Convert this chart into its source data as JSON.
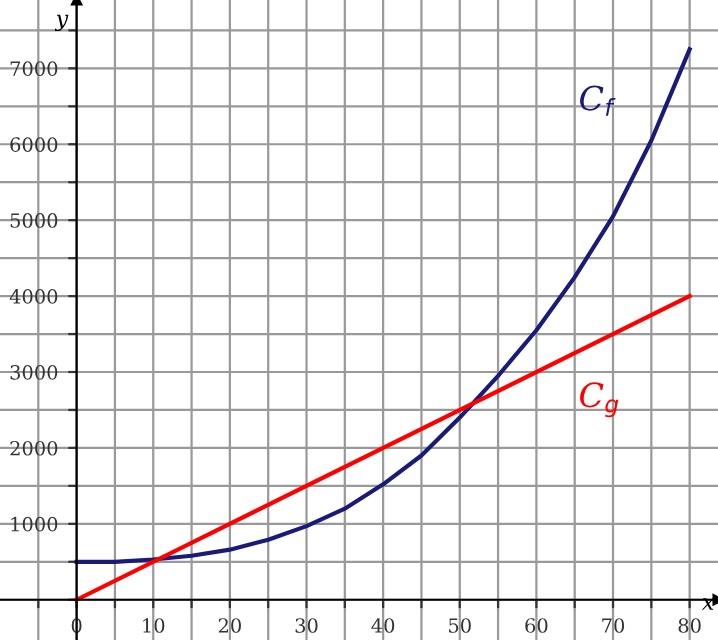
{
  "chart_data": {
    "type": "line",
    "xlabel": "x",
    "ylabel": "y",
    "x": [
      0,
      5,
      10,
      15,
      20,
      25,
      30,
      35,
      40,
      45,
      50,
      55,
      60,
      65,
      70,
      75,
      80
    ],
    "series": [
      {
        "name": "C$_{f}$",
        "color": "#1a1a7a",
        "values": [
          500,
          500,
          530,
          580,
          660,
          790,
          970,
          1200,
          1520,
          1900,
          2400,
          2950,
          3550,
          4250,
          5050,
          6050,
          7250
        ]
      },
      {
        "name": "C$_{g}$",
        "color": "#ff0000",
        "x": [
          0,
          80
        ],
        "values": [
          0,
          4000
        ]
      }
    ],
    "xlim": [
      -10,
      83.7
    ],
    "ylim": [
      -530,
      7900
    ],
    "xticks": [
      {
        "value": -5,
        "label": null
      },
      0,
      {
        "value": 5,
        "label": null
      },
      10,
      {
        "value": 15,
        "label": null
      },
      20,
      {
        "value": 25,
        "label": null
      },
      30,
      {
        "value": 35,
        "label": null
      },
      40,
      {
        "value": 45,
        "label": null
      },
      50,
      {
        "value": 55,
        "label": null
      },
      60,
      {
        "value": 65,
        "label": null
      },
      70,
      {
        "value": 75,
        "label": null
      },
      80
    ],
    "yticks": [
      {
        "value": 0,
        "label": null
      },
      {
        "value": 500,
        "label": null
      },
      1000,
      {
        "value": 1500,
        "label": null
      },
      2000,
      {
        "value": 2500,
        "label": null
      },
      3000,
      {
        "value": 3500,
        "label": null
      },
      4000,
      {
        "value": 4500,
        "label": null
      },
      5000,
      {
        "value": 5500,
        "label": null
      },
      6000,
      {
        "value": 6500,
        "label": null
      },
      7000,
      {
        "value": 7500,
        "label": null
      }
    ],
    "grid": true,
    "legend": false,
    "marker": "none",
    "line_style": "solid"
  }
}
